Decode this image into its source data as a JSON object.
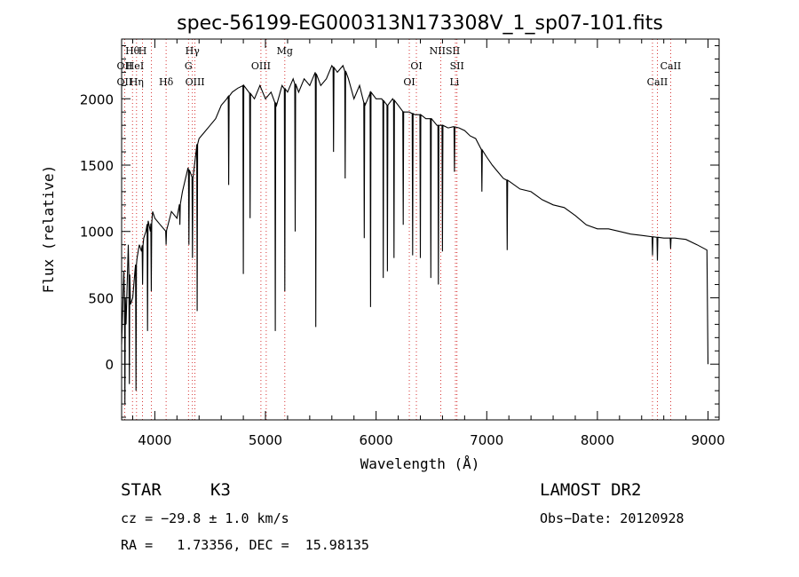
{
  "chart_data": {
    "type": "line",
    "title": "spec-56199-EG000313N173308V_1_sp07-101.fits",
    "xlabel": "Wavelength (Å)",
    "ylabel": "Flux (relative)",
    "xlim": [
      3700,
      9100
    ],
    "ylim": [
      -420,
      2450
    ],
    "xticks": [
      4000,
      5000,
      6000,
      7000,
      8000,
      9000
    ],
    "yticks": [
      0,
      500,
      1000,
      1500,
      2000
    ],
    "grid": false,
    "line_color": "#000000",
    "marker_color": "#cc0000",
    "series": [
      {
        "x": [
          3700,
          3720,
          3740,
          3760,
          3780,
          3800,
          3820,
          3840,
          3860,
          3880,
          3900,
          3920,
          3940,
          3960,
          3980,
          4000,
          4050,
          4100,
          4150,
          4200,
          4250,
          4300,
          4340,
          4380,
          4400,
          4450,
          4500,
          4550,
          4600,
          4650,
          4700,
          4750,
          4800,
          4850,
          4900,
          4950,
          5000,
          5050,
          5100,
          5150,
          5200,
          5250,
          5300,
          5350,
          5400,
          5450,
          5500,
          5550,
          5600,
          5650,
          5700,
          5750,
          5800,
          5850,
          5900,
          5950,
          6000,
          6050,
          6100,
          6150,
          6200,
          6250,
          6300,
          6350,
          6400,
          6450,
          6500,
          6550,
          6600,
          6650,
          6700,
          6750,
          6800,
          6850,
          6900,
          6950,
          7000,
          7050,
          7100,
          7150,
          7200,
          7300,
          7400,
          7500,
          7600,
          7700,
          7800,
          7900,
          8000,
          8100,
          8200,
          8300,
          8400,
          8500,
          8600,
          8700,
          8800,
          8900,
          8990,
          9000
        ],
        "y": [
          150,
          700,
          300,
          900,
          450,
          500,
          700,
          800,
          900,
          850,
          950,
          1000,
          1080,
          1000,
          1150,
          1100,
          1050,
          1000,
          1150,
          1100,
          1300,
          1480,
          1400,
          1650,
          1700,
          1750,
          1800,
          1850,
          1950,
          2000,
          2050,
          2080,
          2100,
          2050,
          2000,
          2100,
          2000,
          2050,
          1950,
          2100,
          2050,
          2150,
          2050,
          2150,
          2100,
          2200,
          2100,
          2150,
          2250,
          2200,
          2250,
          2150,
          2000,
          2100,
          1950,
          2050,
          2000,
          2000,
          1950,
          2000,
          1950,
          1900,
          1900,
          1880,
          1880,
          1850,
          1850,
          1800,
          1800,
          1780,
          1790,
          1780,
          1760,
          1720,
          1700,
          1620,
          1560,
          1500,
          1450,
          1400,
          1380,
          1320,
          1300,
          1240,
          1200,
          1180,
          1120,
          1050,
          1020,
          1020,
          1000,
          980,
          970,
          960,
          950,
          950,
          940,
          900,
          860,
          0
        ]
      }
    ],
    "absorption_dips": [
      {
        "x": 3730,
        "y": -300
      },
      {
        "x": 3770,
        "y": -150
      },
      {
        "x": 3830,
        "y": -200
      },
      {
        "x": 3889,
        "y": 600
      },
      {
        "x": 3934,
        "y": 250
      },
      {
        "x": 3968,
        "y": 550
      },
      {
        "x": 4102,
        "y": 900
      },
      {
        "x": 4226,
        "y": 1050
      },
      {
        "x": 4308,
        "y": 900
      },
      {
        "x": 4340,
        "y": 800
      },
      {
        "x": 4383,
        "y": 400
      },
      {
        "x": 4668,
        "y": 1350
      },
      {
        "x": 4800,
        "y": 680
      },
      {
        "x": 4861,
        "y": 1100
      },
      {
        "x": 5089,
        "y": 250
      },
      {
        "x": 5175,
        "y": 550
      },
      {
        "x": 5269,
        "y": 1000
      },
      {
        "x": 5455,
        "y": 280
      },
      {
        "x": 5615,
        "y": 1600
      },
      {
        "x": 5720,
        "y": 1400
      },
      {
        "x": 5893,
        "y": 950
      },
      {
        "x": 5950,
        "y": 430
      },
      {
        "x": 6065,
        "y": 650
      },
      {
        "x": 6102,
        "y": 700
      },
      {
        "x": 6162,
        "y": 800
      },
      {
        "x": 6245,
        "y": 1050
      },
      {
        "x": 6330,
        "y": 820
      },
      {
        "x": 6400,
        "y": 800
      },
      {
        "x": 6495,
        "y": 650
      },
      {
        "x": 6563,
        "y": 600
      },
      {
        "x": 6600,
        "y": 850
      },
      {
        "x": 6708,
        "y": 1450
      },
      {
        "x": 6956,
        "y": 1300
      },
      {
        "x": 7185,
        "y": 860
      },
      {
        "x": 8498,
        "y": 820
      },
      {
        "x": 8542,
        "y": 780
      },
      {
        "x": 8662,
        "y": 870
      }
    ],
    "line_markers": [
      {
        "label": "Hθ",
        "x": 3798,
        "row": 1
      },
      {
        "label": "H",
        "x": 3889,
        "row": 1
      },
      {
        "label": "Hγ",
        "x": 4340,
        "row": 1
      },
      {
        "label": "Mg",
        "x": 5175,
        "row": 1
      },
      {
        "label": "NIISII",
        "x": 6620,
        "row": 1
      },
      {
        "label": "OII",
        "x": 3727,
        "row": 2
      },
      {
        "label": "HeI",
        "x": 3820,
        "row": 2
      },
      {
        "label": "G",
        "x": 4304,
        "row": 2
      },
      {
        "label": "OIII",
        "x": 4959,
        "row": 2
      },
      {
        "label": "OI",
        "x": 6364,
        "row": 2
      },
      {
        "label": "SII",
        "x": 6731,
        "row": 2
      },
      {
        "label": "CaII",
        "x": 8662,
        "row": 2
      },
      {
        "label": "OII",
        "x": 3727,
        "row": 3
      },
      {
        "label": "Hη",
        "x": 3835,
        "row": 3
      },
      {
        "label": "Hδ",
        "x": 4102,
        "row": 3
      },
      {
        "label": "OIII",
        "x": 4363,
        "row": 3
      },
      {
        "label": "OI",
        "x": 6300,
        "row": 3
      },
      {
        "label": "Li",
        "x": 6708,
        "row": 3
      },
      {
        "label": "CaII",
        "x": 8542,
        "row": 3
      }
    ],
    "marker_lines_x": [
      3727,
      3798,
      3835,
      3889,
      3970,
      4102,
      4304,
      4340,
      4363,
      4959,
      5007,
      5175,
      6300,
      6364,
      6584,
      6717,
      6731,
      8498,
      8542,
      8662
    ]
  },
  "footer": {
    "object_class": "STAR",
    "subclass": "K3",
    "survey": "LAMOST DR2",
    "cz": "cz = −29.8 ± 1.0 km/s",
    "obs_date": "Obs−Date: 20120928",
    "coords": "RA =   1.73356, DEC =  15.98135"
  }
}
